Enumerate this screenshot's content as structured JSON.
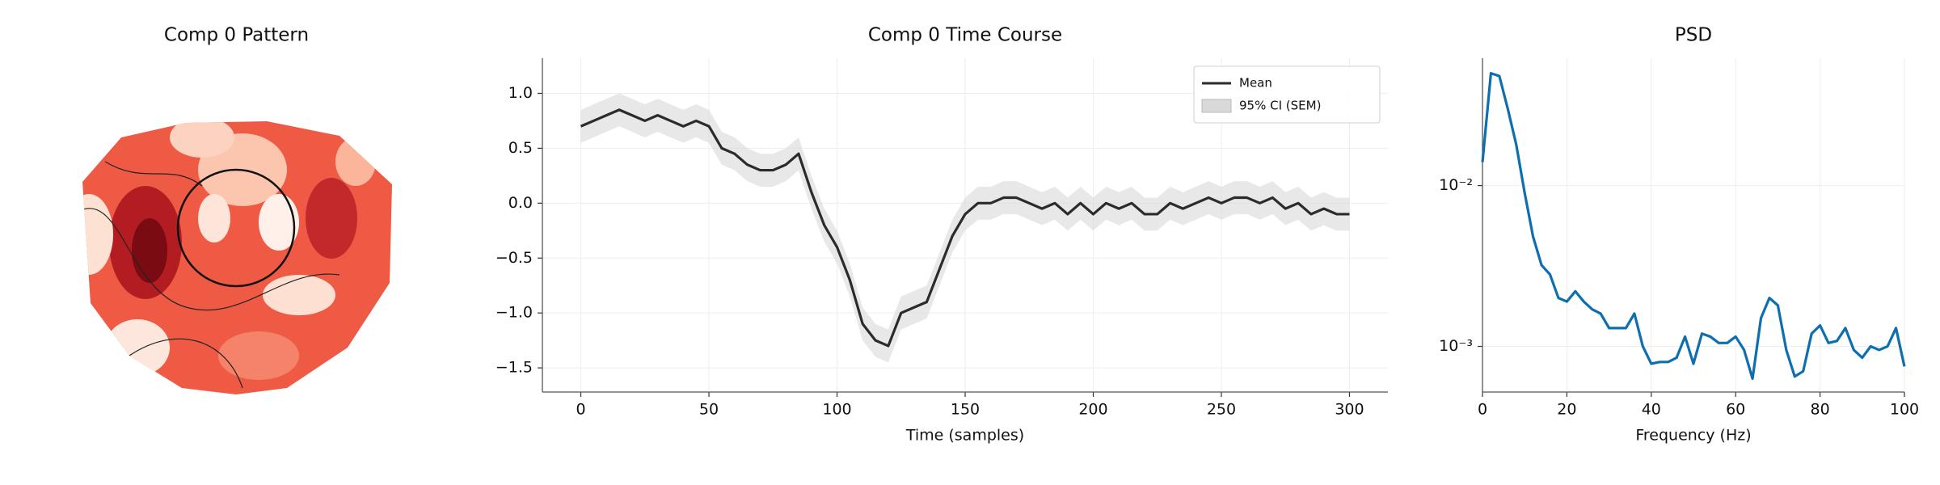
{
  "chart_data": [
    {
      "type": "topomap",
      "title": "Comp 0 Pattern"
    },
    {
      "type": "line",
      "title": "Comp 0 Time Course",
      "xlabel": "Time (samples)",
      "x": [
        0,
        5,
        10,
        15,
        20,
        25,
        30,
        35,
        40,
        45,
        50,
        55,
        60,
        65,
        70,
        75,
        80,
        85,
        90,
        95,
        100,
        105,
        110,
        115,
        120,
        125,
        130,
        135,
        140,
        145,
        150,
        155,
        160,
        165,
        170,
        175,
        180,
        185,
        190,
        195,
        200,
        205,
        210,
        215,
        220,
        225,
        230,
        235,
        240,
        245,
        250,
        255,
        260,
        265,
        270,
        275,
        280,
        285,
        290,
        295,
        300
      ],
      "series": [
        {
          "name": "Mean",
          "color": "#2b2b2b",
          "values": [
            0.7,
            0.75,
            0.8,
            0.85,
            0.8,
            0.75,
            0.8,
            0.75,
            0.7,
            0.75,
            0.7,
            0.5,
            0.45,
            0.35,
            0.3,
            0.3,
            0.35,
            0.45,
            0.1,
            -0.2,
            -0.4,
            -0.7,
            -1.1,
            -1.25,
            -1.3,
            -1.0,
            -0.95,
            -0.9,
            -0.6,
            -0.3,
            -0.1,
            0.0,
            0.0,
            0.05,
            0.05,
            0.0,
            -0.05,
            0.0,
            -0.1,
            0.0,
            -0.1,
            0.0,
            -0.05,
            0.0,
            -0.1,
            -0.1,
            0.0,
            -0.05,
            0.0,
            0.05,
            0.0,
            0.05,
            0.05,
            0.0,
            0.05,
            -0.05,
            0.0,
            -0.1,
            -0.05,
            -0.1,
            -0.1
          ]
        }
      ],
      "band": {
        "name": "95% CI (SEM)",
        "color": "#d9d9d9",
        "upper": [
          0.85,
          0.9,
          0.95,
          1.0,
          0.95,
          0.9,
          0.95,
          0.9,
          0.85,
          0.9,
          0.85,
          0.65,
          0.6,
          0.5,
          0.45,
          0.45,
          0.5,
          0.6,
          0.25,
          -0.05,
          -0.25,
          -0.55,
          -0.95,
          -1.1,
          -1.15,
          -0.85,
          -0.8,
          -0.75,
          -0.45,
          -0.15,
          0.05,
          0.15,
          0.15,
          0.2,
          0.2,
          0.15,
          0.1,
          0.15,
          0.05,
          0.15,
          0.05,
          0.15,
          0.1,
          0.15,
          0.05,
          0.05,
          0.15,
          0.1,
          0.15,
          0.2,
          0.15,
          0.2,
          0.2,
          0.15,
          0.2,
          0.1,
          0.15,
          0.05,
          0.1,
          0.05,
          0.05
        ],
        "lower": [
          0.55,
          0.6,
          0.65,
          0.7,
          0.65,
          0.6,
          0.65,
          0.6,
          0.55,
          0.6,
          0.55,
          0.35,
          0.3,
          0.2,
          0.15,
          0.15,
          0.2,
          0.3,
          -0.05,
          -0.35,
          -0.55,
          -0.85,
          -1.25,
          -1.4,
          -1.45,
          -1.15,
          -1.1,
          -1.05,
          -0.75,
          -0.45,
          -0.25,
          -0.15,
          -0.15,
          -0.1,
          -0.1,
          -0.15,
          -0.2,
          -0.15,
          -0.25,
          -0.15,
          -0.25,
          -0.15,
          -0.2,
          -0.15,
          -0.25,
          -0.25,
          -0.15,
          -0.2,
          -0.15,
          -0.1,
          -0.15,
          -0.1,
          -0.1,
          -0.15,
          -0.1,
          -0.2,
          -0.15,
          -0.25,
          -0.2,
          -0.25,
          -0.25
        ]
      },
      "xlim": [
        -15,
        315
      ],
      "xticks": [
        0,
        50,
        100,
        150,
        200,
        250,
        300
      ],
      "ylim": [
        -1.72,
        1.32
      ],
      "yticks": [
        {
          "value": -1.5,
          "label": "−1.5"
        },
        {
          "value": -1,
          "label": "−1.0"
        },
        {
          "value": -0.5,
          "label": "−0.5"
        },
        {
          "value": 0,
          "label": "0.0"
        },
        0.5,
        {
          "value": 1,
          "label": "1.0"
        }
      ],
      "grid": true,
      "legend": "upper right"
    },
    {
      "type": "line",
      "title": "PSD",
      "xlabel": "Frequency (Hz)",
      "log_y": true,
      "x": [
        0,
        2,
        4,
        6,
        8,
        10,
        12,
        14,
        16,
        18,
        20,
        22,
        24,
        26,
        28,
        30,
        32,
        34,
        36,
        38,
        40,
        42,
        44,
        46,
        48,
        50,
        52,
        54,
        56,
        58,
        60,
        62,
        64,
        66,
        68,
        70,
        72,
        74,
        76,
        78,
        80,
        82,
        84,
        86,
        88,
        90,
        92,
        94,
        96,
        98,
        100
      ],
      "series": [
        {
          "color": "#0d6eb0",
          "values": [
            0.014,
            0.05,
            0.048,
            0.03,
            0.018,
            0.009,
            0.0048,
            0.0032,
            0.0028,
            0.002,
            0.0019,
            0.0022,
            0.0019,
            0.0017,
            0.0016,
            0.0013,
            0.0013,
            0.0013,
            0.0016,
            0.001,
            0.00078,
            0.0008,
            0.0008,
            0.00085,
            0.00115,
            0.00078,
            0.0012,
            0.00115,
            0.00105,
            0.00105,
            0.00115,
            0.00095,
            0.00063,
            0.0015,
            0.002,
            0.0018,
            0.00095,
            0.00065,
            0.0007,
            0.0012,
            0.00135,
            0.00105,
            0.00108,
            0.0013,
            0.00095,
            0.00085,
            0.001,
            0.00095,
            0.001,
            0.0013,
            0.00075
          ]
        }
      ],
      "xlim": [
        0,
        100
      ],
      "xticks": [
        0,
        20,
        40,
        60,
        80,
        100
      ],
      "ylim": [
        0.00052,
        0.062
      ],
      "yticks": [
        {
          "value": 0.001,
          "label": "10⁻³"
        },
        {
          "value": 0.01,
          "label": "10⁻²"
        }
      ],
      "grid": true
    }
  ]
}
